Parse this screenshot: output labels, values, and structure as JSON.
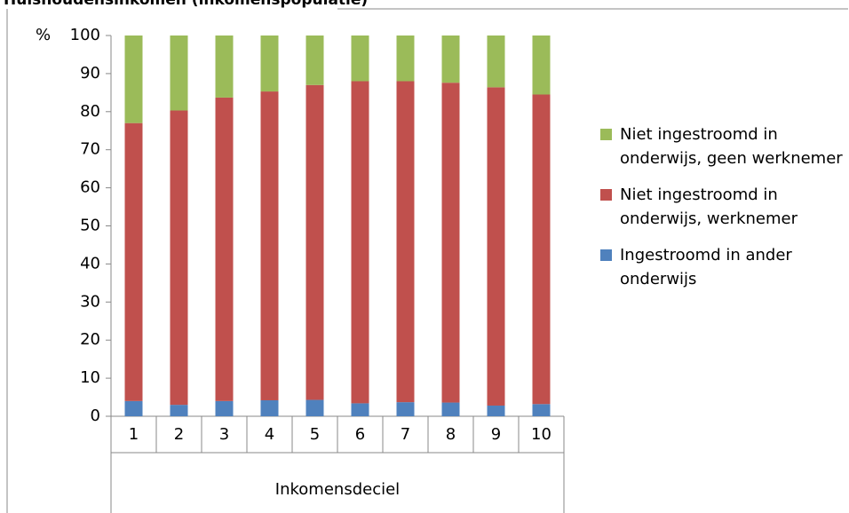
{
  "chart_data": {
    "type": "stacked-bar",
    "title": "Huishoudensinkomen (inkomenspopulatie)",
    "y_label": "%",
    "x_label": "Inkomensdeciel",
    "categories": [
      "1",
      "2",
      "3",
      "4",
      "5",
      "6",
      "7",
      "8",
      "9",
      "10"
    ],
    "series": [
      {
        "name": "Ingestroomd in ander onderwijs",
        "color": "#4f81bd",
        "values": [
          4,
          3,
          4,
          4.2,
          4.3,
          3.4,
          3.7,
          3.6,
          2.8,
          3.2
        ]
      },
      {
        "name": "Niet ingestroomd in onderwijs, werknemer",
        "color": "#c0504d",
        "values": [
          73,
          77.3,
          79.7,
          81.1,
          82.7,
          84.6,
          84.3,
          84,
          83.6,
          81.3
        ]
      },
      {
        "name": "Niet ingestroomd in onderwijs, geen werknemer",
        "color": "#9bbb59",
        "values": [
          23,
          19.7,
          16.3,
          14.7,
          13,
          12,
          12,
          12.4,
          13.6,
          15.5
        ]
      }
    ],
    "ylim": [
      0,
      100
    ],
    "yticks": [
      0,
      10,
      20,
      30,
      40,
      50,
      60,
      70,
      80,
      90,
      100
    ],
    "legend": "right"
  }
}
